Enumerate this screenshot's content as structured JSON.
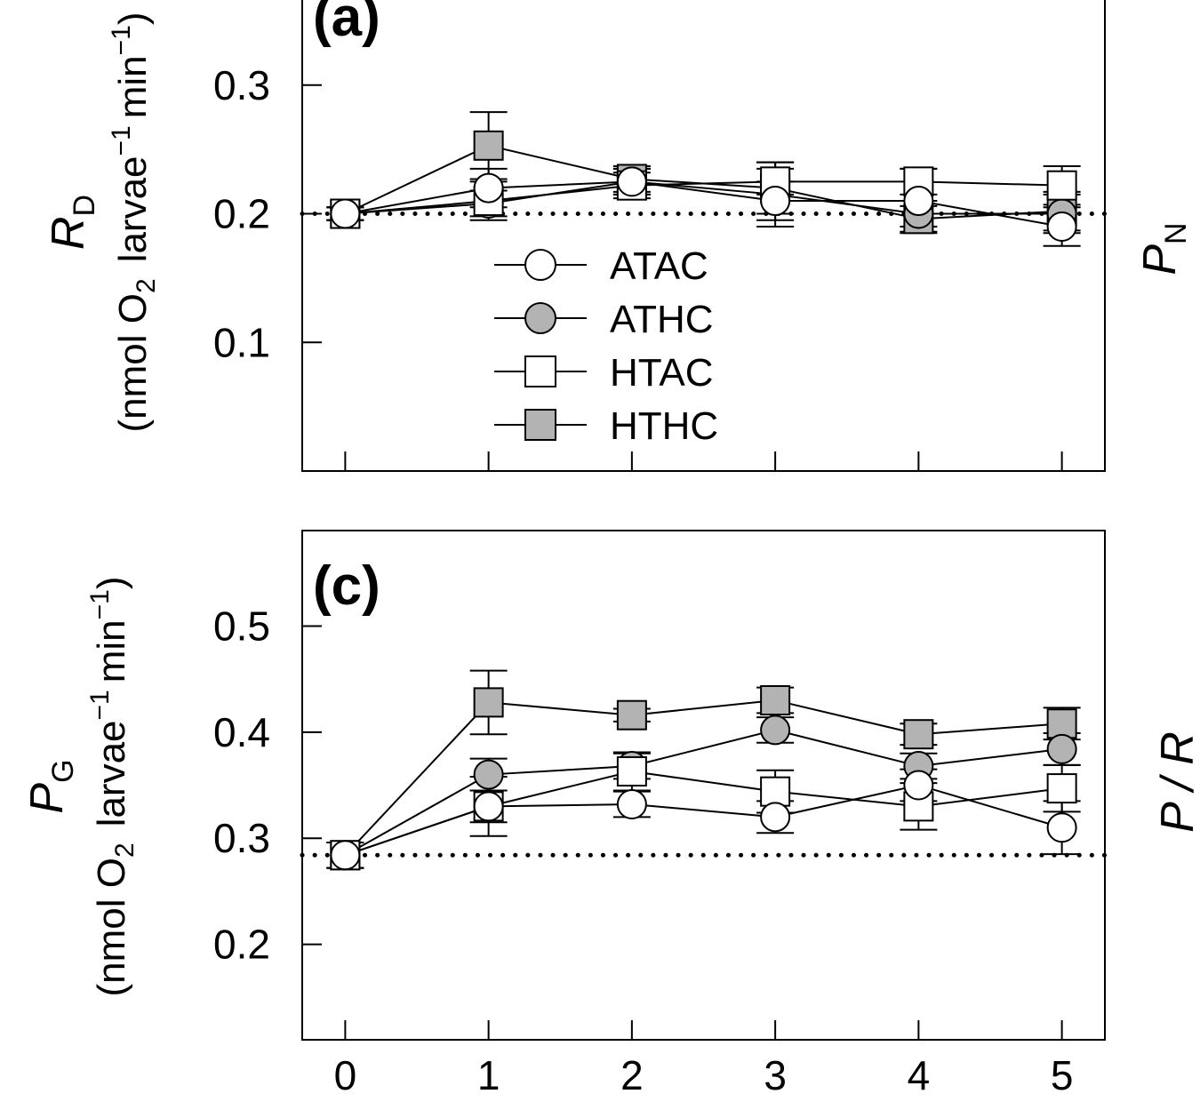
{
  "figure": {
    "legend": [
      {
        "name": "ATAC",
        "marker": "circle",
        "fill": "#ffffff"
      },
      {
        "name": "ATHC",
        "marker": "circle",
        "fill": "#b3b3b3"
      },
      {
        "name": "HTAC",
        "marker": "square",
        "fill": "#ffffff"
      },
      {
        "name": "HTHC",
        "marker": "square",
        "fill": "#b3b3b3"
      }
    ],
    "right_clipped_labels": {
      "top": "P",
      "top_sub": "N",
      "bottom": "P / R"
    }
  },
  "chart_data": [
    {
      "type": "line",
      "panel_label": "(a)",
      "ylabel": {
        "symbol": "R",
        "subscript": "D",
        "unit_prefix": "(nmol O",
        "unit_o2_sub": "2",
        "unit_mid": "larvae",
        "unit_sup1": "−1",
        "unit_mid2": "min",
        "unit_sup2": "−1",
        "unit_suffix": ")"
      },
      "x": [
        0,
        1,
        2,
        3,
        4,
        5
      ],
      "xticks": [
        "0",
        "1",
        "2",
        "3",
        "4",
        "5"
      ],
      "xlim": [
        -0.3,
        5.3
      ],
      "ylim": [
        0,
        0.38
      ],
      "yticks": [
        {
          "value": 0.1,
          "label": "0.1"
        },
        {
          "value": 0.2,
          "label": "0.2"
        },
        {
          "value": 0.3,
          "label": "0.3"
        }
      ],
      "reference_line": 0.2,
      "series": [
        {
          "name": "ATAC",
          "values": [
            0.2,
            0.22,
            0.225,
            0.21,
            0.21,
            0.19
          ],
          "errors": [
            0.005,
            0.015,
            0.01,
            0.015,
            0.025,
            0.015
          ]
        },
        {
          "name": "ATHC",
          "values": [
            0.2,
            0.208,
            0.225,
            0.215,
            0.2,
            0.2
          ],
          "errors": [
            0.005,
            0.01,
            0.01,
            0.025,
            0.01,
            0.015
          ]
        },
        {
          "name": "HTAC",
          "values": [
            0.2,
            0.21,
            0.222,
            0.225,
            0.225,
            0.222
          ],
          "errors": [
            0.005,
            0.015,
            0.01,
            0.01,
            0.01,
            0.015
          ]
        },
        {
          "name": "HTHC",
          "values": [
            0.2,
            0.253,
            0.227,
            0.22,
            0.196,
            0.202
          ],
          "errors": [
            0.005,
            0.026,
            0.01,
            0.02,
            0.01,
            0.015
          ]
        }
      ]
    },
    {
      "type": "line",
      "panel_label": "(c)",
      "ylabel": {
        "symbol": "P",
        "subscript": "G",
        "unit_prefix": "(nmol O",
        "unit_o2_sub": "2",
        "unit_mid": "larvae",
        "unit_sup1": "−1",
        "unit_mid2": "min",
        "unit_sup2": "−1",
        "unit_suffix": ")"
      },
      "x": [
        0,
        1,
        2,
        3,
        4,
        5
      ],
      "xticks": [
        "0",
        "1",
        "2",
        "3",
        "4",
        "5"
      ],
      "xlim": [
        -0.3,
        5.3
      ],
      "ylim": [
        0.11,
        0.59
      ],
      "yticks": [
        {
          "value": 0.2,
          "label": "0.2"
        },
        {
          "value": 0.3,
          "label": "0.3"
        },
        {
          "value": 0.4,
          "label": "0.4"
        },
        {
          "value": 0.5,
          "label": "0.5"
        }
      ],
      "reference_line": 0.284,
      "series": [
        {
          "name": "ATAC",
          "values": [
            0.284,
            0.33,
            0.332,
            0.32,
            0.35,
            0.31
          ],
          "errors": [
            0.012,
            0.015,
            0.012,
            0.015,
            0.015,
            0.025
          ]
        },
        {
          "name": "ATHC",
          "values": [
            0.284,
            0.36,
            0.368,
            0.402,
            0.368,
            0.384
          ],
          "errors": [
            0.012,
            0.015,
            0.012,
            0.012,
            0.012,
            0.015
          ]
        },
        {
          "name": "HTAC",
          "values": [
            0.284,
            0.33,
            0.363,
            0.344,
            0.33,
            0.347
          ],
          "errors": [
            0.012,
            0.028,
            0.018,
            0.02,
            0.022,
            0.022
          ]
        },
        {
          "name": "HTHC",
          "values": [
            0.284,
            0.428,
            0.416,
            0.43,
            0.398,
            0.408
          ],
          "errors": [
            0.012,
            0.03,
            0.006,
            0.012,
            0.01,
            0.015
          ]
        }
      ]
    }
  ]
}
